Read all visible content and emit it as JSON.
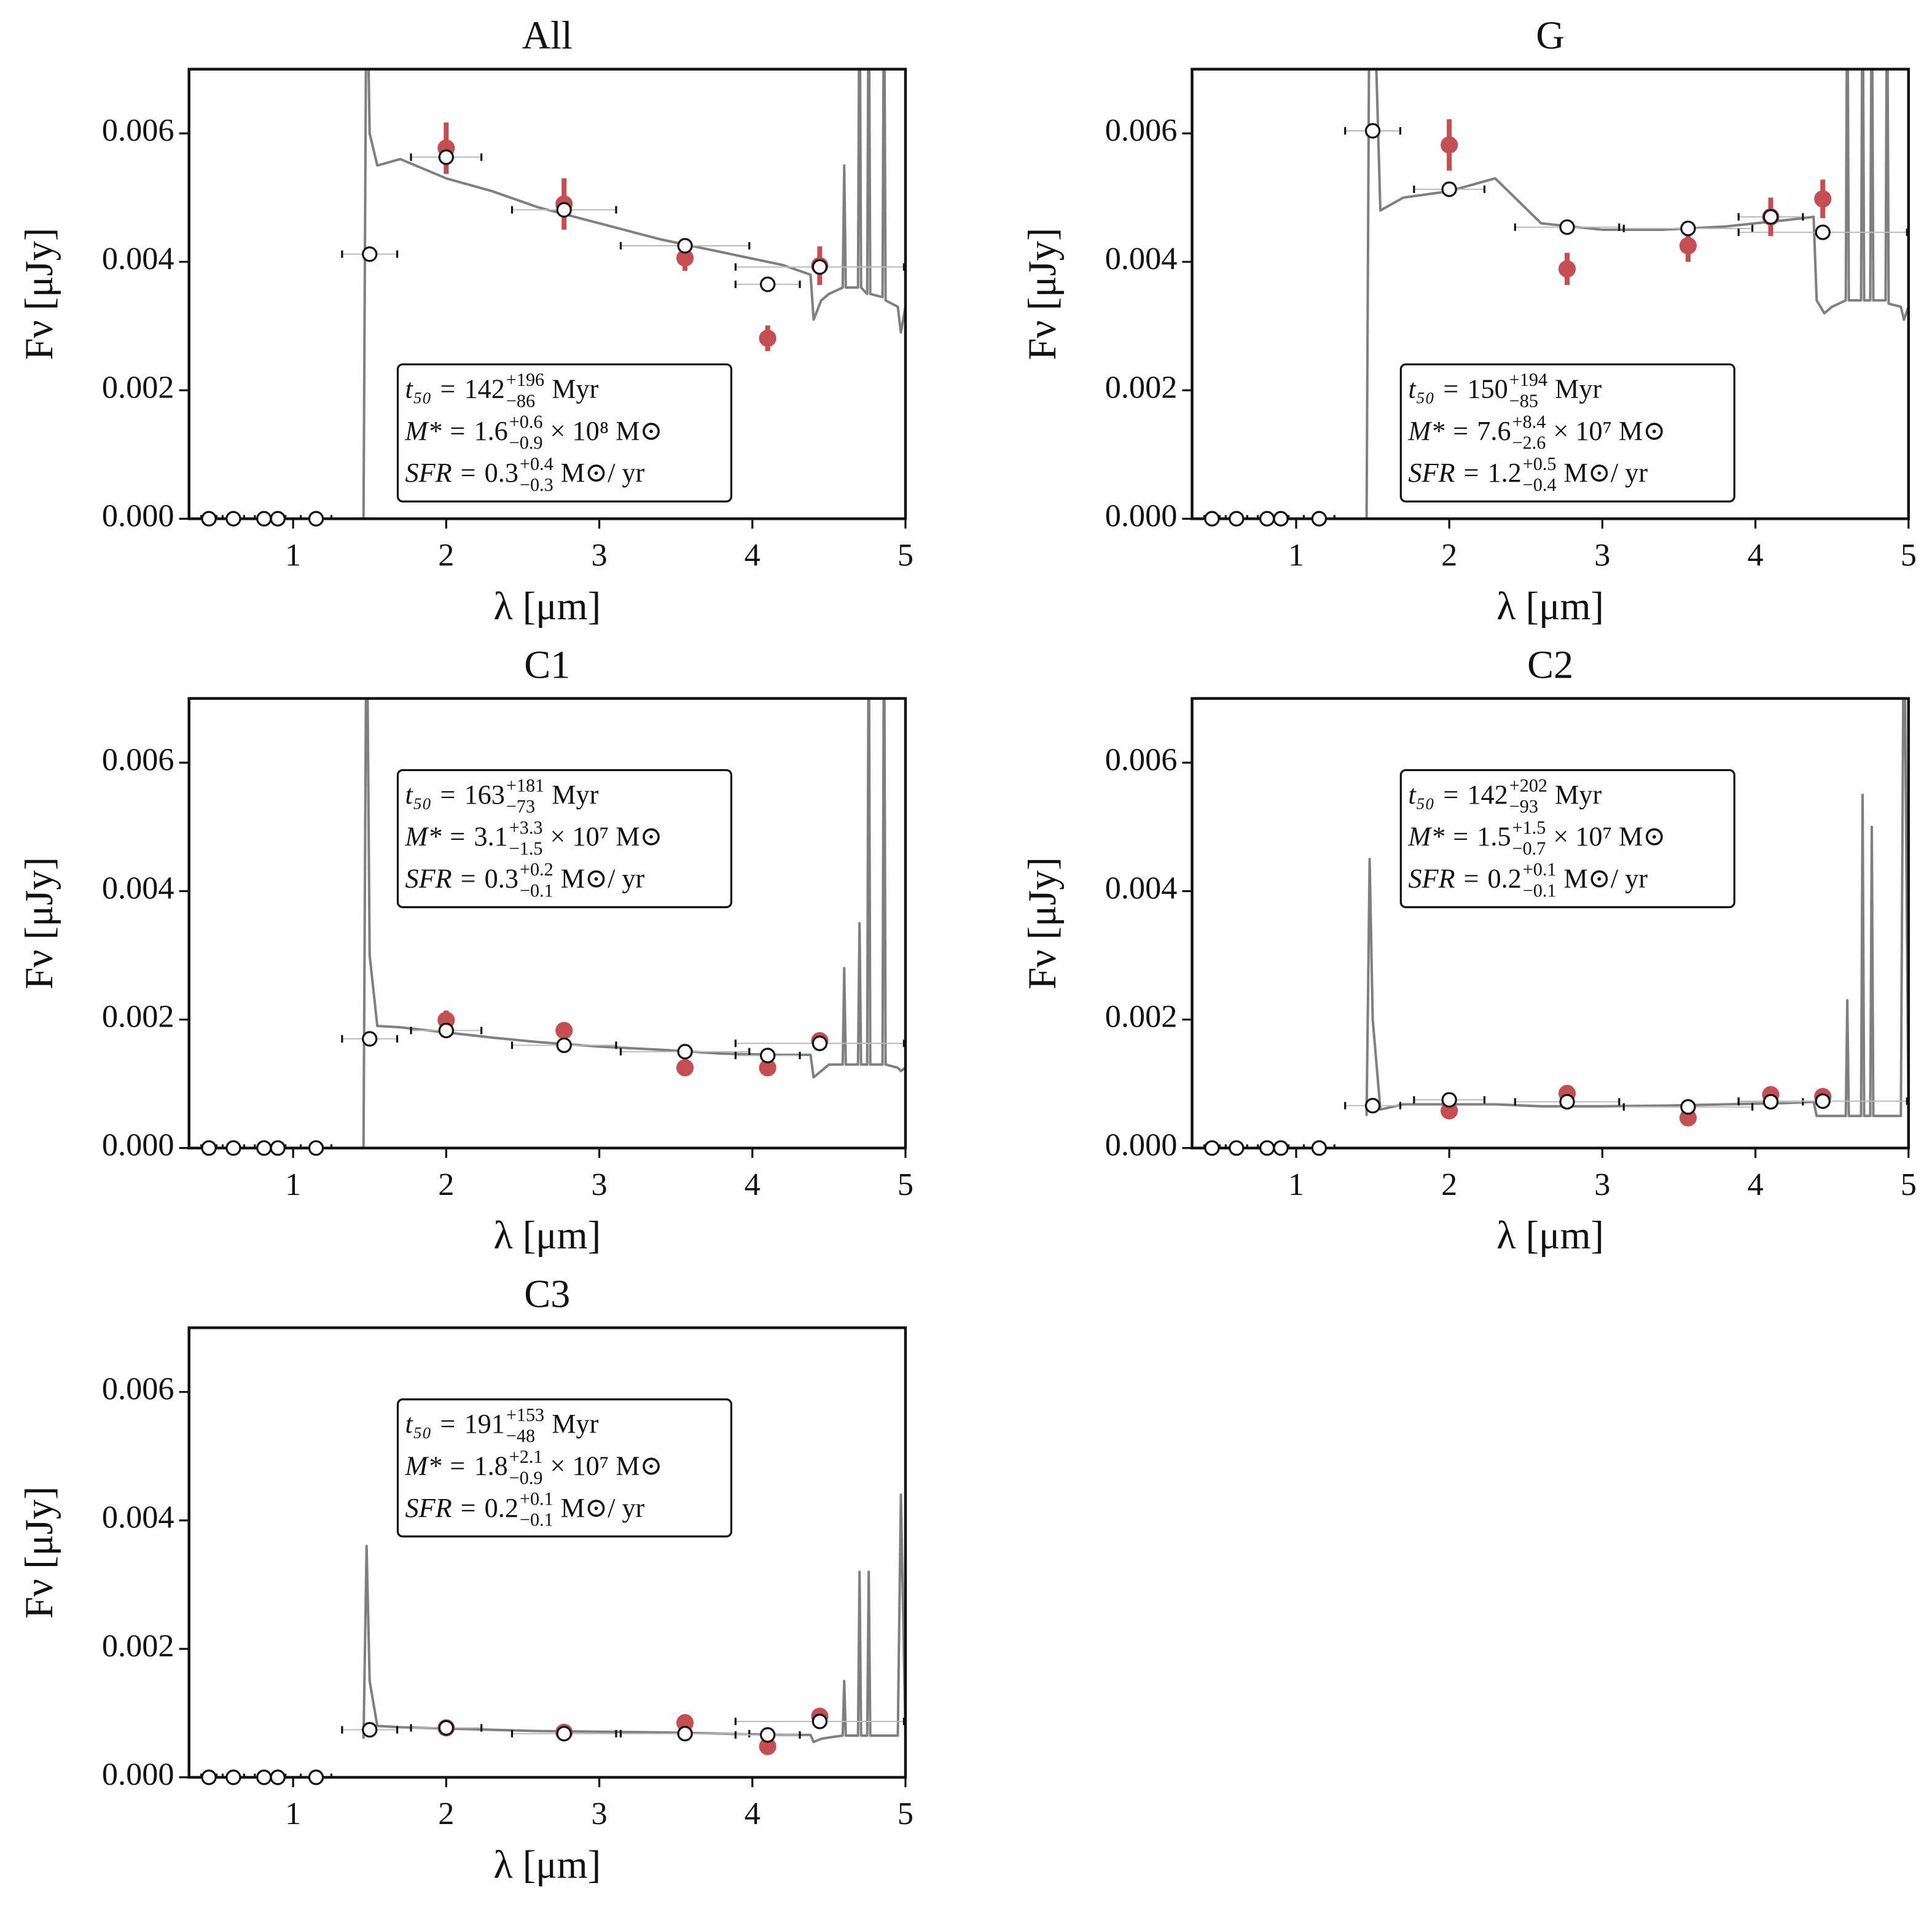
{
  "chart_data": [
    {
      "type": "sed",
      "title": "All",
      "xlabel": "λ [μm]",
      "ylabel": "Fν [μJy]",
      "xlim": [
        0.32,
        5
      ],
      "ylim": [
        0,
        0.007
      ],
      "xticks": [
        1,
        2,
        3,
        4,
        5
      ],
      "yticks": [
        {
          "value": 0,
          "label": "0.000"
        },
        {
          "value": 0.002,
          "label": "0.002"
        },
        {
          "value": 0.004,
          "label": "0.004"
        },
        {
          "value": 0.006,
          "label": "0.006"
        }
      ],
      "spectrum": {
        "color": "#7f7f7f",
        "x": [
          1.46,
          1.48,
          1.5,
          1.55,
          1.7,
          2.0,
          2.3,
          2.6,
          3.0,
          3.4,
          3.8,
          4.2,
          4.38,
          4.4,
          4.45,
          4.5,
          4.59,
          4.6,
          4.61,
          4.69,
          4.7,
          4.71,
          4.75,
          4.76,
          4.77,
          4.85,
          4.86,
          4.87,
          4.95,
          4.97,
          5.0
        ],
        "values": [
          0,
          0.009,
          0.006,
          0.0055,
          0.0056,
          0.0053,
          0.0051,
          0.00485,
          0.0046,
          0.00435,
          0.00415,
          0.00395,
          0.0038,
          0.0031,
          0.0034,
          0.0035,
          0.0036,
          0.0055,
          0.0036,
          0.0036,
          0.009,
          0.0036,
          0.0035,
          0.009,
          0.0035,
          0.00345,
          0.009,
          0.0034,
          0.0033,
          0.0029,
          0.0033
        ]
      },
      "model": {
        "color": "#ffffff",
        "x": [
          0.45,
          0.61,
          0.81,
          0.9,
          1.15,
          1.5,
          2.0,
          2.77,
          3.56,
          4.1,
          4.44
        ],
        "values": [
          0,
          0,
          0,
          0,
          0,
          0.00412,
          0.00563,
          0.00481,
          0.00425,
          0.00365,
          0.00392
        ],
        "xerr": [
          0.05,
          0.07,
          0.06,
          0.05,
          0.1,
          0.18,
          0.23,
          0.34,
          0.42,
          0.21,
          0.55
        ]
      },
      "observed": {
        "color": "#c44e52",
        "x": [
          2.0,
          2.77,
          3.56,
          4.1,
          4.44
        ],
        "values": [
          0.00577,
          0.0049,
          0.00406,
          0.00281,
          0.00394
        ],
        "yerr": [
          0.0004,
          0.0004,
          0.0002,
          0.0002,
          0.0003
        ]
      },
      "annotation": {
        "loc": "lower",
        "lines": [
          {
            "lhs": "t₅₀ =",
            "value": "142",
            "plus": "+196",
            "minus": "−86",
            "unit": "Myr"
          },
          {
            "lhs": "M* =",
            "value": "1.6",
            "plus": "+0.6",
            "minus": "−0.9",
            "unit": "× 10⁸ M⊙"
          },
          {
            "lhs": "SFR =",
            "value": "0.3",
            "plus": "+0.4",
            "minus": "−0.3",
            "unit": "M⊙/ yr"
          }
        ]
      }
    },
    {
      "type": "sed",
      "title": "G",
      "xlabel": "λ [μm]",
      "ylabel": "Fν [μJy]",
      "xlim": [
        0.32,
        5
      ],
      "ylim": [
        0,
        0.007
      ],
      "xticks": [
        1,
        2,
        3,
        4,
        5
      ],
      "yticks": [
        {
          "value": 0,
          "label": "0.000"
        },
        {
          "value": 0.002,
          "label": "0.002"
        },
        {
          "value": 0.004,
          "label": "0.004"
        },
        {
          "value": 0.006,
          "label": "0.006"
        }
      ],
      "spectrum": {
        "color": "#7f7f7f",
        "x": [
          1.46,
          1.48,
          1.5,
          1.55,
          1.7,
          2.0,
          2.3,
          2.6,
          3.0,
          3.4,
          3.8,
          4.2,
          4.38,
          4.4,
          4.45,
          4.5,
          4.59,
          4.6,
          4.61,
          4.69,
          4.7,
          4.71,
          4.75,
          4.76,
          4.77,
          4.85,
          4.86,
          4.87,
          4.95,
          4.97,
          5.0
        ],
        "values": [
          0,
          0.009,
          0.009,
          0.0048,
          0.005,
          0.0051,
          0.0053,
          0.0046,
          0.0045,
          0.0045,
          0.00455,
          0.00465,
          0.0047,
          0.0034,
          0.0032,
          0.0033,
          0.0034,
          0.009,
          0.0034,
          0.0034,
          0.009,
          0.0034,
          0.0034,
          0.009,
          0.0034,
          0.0034,
          0.009,
          0.00335,
          0.0033,
          0.0031,
          0.0033
        ]
      },
      "model": {
        "color": "#ffffff",
        "x": [
          0.45,
          0.61,
          0.81,
          0.9,
          1.15,
          1.5,
          2.0,
          2.77,
          3.56,
          4.1,
          4.44
        ],
        "values": [
          0,
          0,
          0,
          0,
          0,
          0.00604,
          0.00513,
          0.00454,
          0.00452,
          0.0047,
          0.00446
        ],
        "xerr": [
          0.05,
          0.07,
          0.06,
          0.05,
          0.1,
          0.18,
          0.23,
          0.34,
          0.42,
          0.21,
          0.55
        ]
      },
      "observed": {
        "color": "#c44e52",
        "x": [
          2.0,
          2.77,
          3.56,
          4.1,
          4.44
        ],
        "values": [
          0.00582,
          0.00389,
          0.00425,
          0.0047,
          0.00498
        ],
        "yerr": [
          0.0004,
          0.00025,
          0.00025,
          0.0003,
          0.0003
        ]
      },
      "annotation": {
        "loc": "lower",
        "lines": [
          {
            "lhs": "t₅₀ =",
            "value": "150",
            "plus": "+194",
            "minus": "−85",
            "unit": "Myr"
          },
          {
            "lhs": "M* =",
            "value": "7.6",
            "plus": "+8.4",
            "minus": "−2.6",
            "unit": "× 10⁷ M⊙"
          },
          {
            "lhs": "SFR =",
            "value": "1.2",
            "plus": "+0.5",
            "minus": "−0.4",
            "unit": "M⊙/ yr"
          }
        ]
      }
    },
    {
      "type": "sed",
      "title": "C1",
      "xlabel": "λ [μm]",
      "ylabel": "Fν [μJy]",
      "xlim": [
        0.32,
        5
      ],
      "ylim": [
        0,
        0.007
      ],
      "xticks": [
        1,
        2,
        3,
        4,
        5
      ],
      "yticks": [
        {
          "value": 0,
          "label": "0.000"
        },
        {
          "value": 0.002,
          "label": "0.002"
        },
        {
          "value": 0.004,
          "label": "0.004"
        },
        {
          "value": 0.006,
          "label": "0.006"
        }
      ],
      "spectrum": {
        "color": "#7f7f7f",
        "x": [
          1.46,
          1.48,
          1.5,
          1.55,
          1.7,
          2.0,
          2.3,
          2.6,
          3.0,
          3.4,
          3.8,
          4.2,
          4.38,
          4.4,
          4.45,
          4.5,
          4.59,
          4.6,
          4.61,
          4.69,
          4.7,
          4.71,
          4.75,
          4.76,
          4.77,
          4.85,
          4.86,
          4.87,
          4.95,
          4.97,
          5.0
        ],
        "values": [
          0,
          0.009,
          0.003,
          0.0019,
          0.00188,
          0.0018,
          0.00172,
          0.00165,
          0.00158,
          0.00153,
          0.00147,
          0.00145,
          0.00145,
          0.0011,
          0.0012,
          0.0013,
          0.0013,
          0.0028,
          0.0013,
          0.0013,
          0.0035,
          0.0013,
          0.0013,
          0.009,
          0.0013,
          0.0013,
          0.009,
          0.0013,
          0.00125,
          0.0012,
          0.00125
        ]
      },
      "model": {
        "color": "#ffffff",
        "x": [
          0.45,
          0.61,
          0.81,
          0.9,
          1.15,
          1.5,
          2.0,
          2.77,
          3.56,
          4.1,
          4.44
        ],
        "values": [
          0,
          0,
          0,
          0,
          0,
          0.0017,
          0.00183,
          0.0016,
          0.0015,
          0.00144,
          0.00163
        ],
        "xerr": [
          0.05,
          0.07,
          0.06,
          0.05,
          0.1,
          0.18,
          0.23,
          0.34,
          0.42,
          0.21,
          0.55
        ]
      },
      "observed": {
        "color": "#c44e52",
        "x": [
          2.0,
          2.77,
          3.56,
          4.1,
          4.44
        ],
        "values": [
          0.00199,
          0.00183,
          0.00125,
          0.00125,
          0.00167
        ],
        "yerr": [
          0.00015,
          0.0001,
          5e-05,
          5e-05,
          0.0001
        ]
      },
      "annotation": {
        "loc": "upper",
        "lines": [
          {
            "lhs": "t₅₀ =",
            "value": "163",
            "plus": "+181",
            "minus": "−73",
            "unit": "Myr"
          },
          {
            "lhs": "M* =",
            "value": "3.1",
            "plus": "+3.3",
            "minus": "−1.5",
            "unit": "× 10⁷ M⊙"
          },
          {
            "lhs": "SFR =",
            "value": "0.3",
            "plus": "+0.2",
            "minus": "−0.1",
            "unit": "M⊙/ yr"
          }
        ]
      }
    },
    {
      "type": "sed",
      "title": "C2",
      "xlabel": "λ [μm]",
      "ylabel": "Fν [μJy]",
      "xlim": [
        0.32,
        5
      ],
      "ylim": [
        0,
        0.007
      ],
      "xticks": [
        1,
        2,
        3,
        4,
        5
      ],
      "yticks": [
        {
          "value": 0,
          "label": "0.000"
        },
        {
          "value": 0.002,
          "label": "0.002"
        },
        {
          "value": 0.004,
          "label": "0.004"
        },
        {
          "value": 0.006,
          "label": "0.006"
        }
      ],
      "spectrum": {
        "color": "#7f7f7f",
        "x": [
          1.46,
          1.48,
          1.5,
          1.55,
          1.7,
          2.0,
          2.3,
          2.6,
          3.0,
          3.4,
          3.8,
          4.2,
          4.38,
          4.4,
          4.45,
          4.5,
          4.59,
          4.6,
          4.61,
          4.69,
          4.7,
          4.71,
          4.75,
          4.76,
          4.77,
          4.85,
          4.86,
          4.87,
          4.95,
          4.97,
          5.0
        ],
        "values": [
          0.0005,
          0.0045,
          0.002,
          0.0006,
          0.00068,
          0.00068,
          0.00068,
          0.00065,
          0.00065,
          0.00066,
          0.00068,
          0.0007,
          0.00072,
          0.0005,
          0.0005,
          0.0005,
          0.0005,
          0.0023,
          0.0005,
          0.0005,
          0.0055,
          0.0005,
          0.0005,
          0.005,
          0.0005,
          0.0005,
          0.0005,
          0.0005,
          0.0005,
          0.009,
          0.0005
        ]
      },
      "model": {
        "color": "#ffffff",
        "x": [
          0.45,
          0.61,
          0.81,
          0.9,
          1.15,
          1.5,
          2.0,
          2.77,
          3.56,
          4.1,
          4.44
        ],
        "values": [
          0,
          0,
          0,
          0,
          0,
          0.00066,
          0.00075,
          0.00072,
          0.00064,
          0.00072,
          0.00073
        ],
        "xerr": [
          0.05,
          0.07,
          0.06,
          0.05,
          0.1,
          0.18,
          0.23,
          0.34,
          0.42,
          0.21,
          0.55
        ]
      },
      "observed": {
        "color": "#c44e52",
        "x": [
          2.0,
          2.77,
          3.56,
          4.1,
          4.44
        ],
        "values": [
          0.00058,
          0.00085,
          0.00047,
          0.00083,
          0.0008
        ],
        "yerr": [
          3e-05,
          3e-05,
          3e-05,
          3e-05,
          3e-05
        ]
      },
      "annotation": {
        "loc": "upper",
        "lines": [
          {
            "lhs": "t₅₀ =",
            "value": "142",
            "plus": "+202",
            "minus": "−93",
            "unit": "Myr"
          },
          {
            "lhs": "M* =",
            "value": "1.5",
            "plus": "+1.5",
            "minus": "−0.7",
            "unit": "× 10⁷ M⊙"
          },
          {
            "lhs": "SFR =",
            "value": "0.2",
            "plus": "+0.1",
            "minus": "−0.1",
            "unit": "M⊙/ yr"
          }
        ]
      }
    },
    {
      "type": "sed",
      "title": "C3",
      "xlabel": "λ [μm]",
      "ylabel": "Fν [μJy]",
      "xlim": [
        0.32,
        5
      ],
      "ylim": [
        0,
        0.007
      ],
      "xticks": [
        1,
        2,
        3,
        4,
        5
      ],
      "yticks": [
        {
          "value": 0,
          "label": "0.000"
        },
        {
          "value": 0.002,
          "label": "0.002"
        },
        {
          "value": 0.004,
          "label": "0.004"
        },
        {
          "value": 0.006,
          "label": "0.006"
        }
      ],
      "spectrum": {
        "color": "#7f7f7f",
        "x": [
          1.46,
          1.48,
          1.5,
          1.55,
          1.7,
          2.0,
          2.3,
          2.6,
          3.0,
          3.4,
          3.8,
          4.2,
          4.38,
          4.4,
          4.45,
          4.5,
          4.59,
          4.6,
          4.61,
          4.69,
          4.7,
          4.71,
          4.75,
          4.76,
          4.77,
          4.85,
          4.86,
          4.87,
          4.95,
          4.97,
          5.0
        ],
        "values": [
          0.0006,
          0.0036,
          0.0015,
          0.0008,
          0.00078,
          0.00076,
          0.00074,
          0.00072,
          0.00071,
          0.0007,
          0.00068,
          0.00066,
          0.00066,
          0.00055,
          0.0006,
          0.00062,
          0.00065,
          0.0015,
          0.00065,
          0.00065,
          0.0032,
          0.00065,
          0.00065,
          0.0032,
          0.00065,
          0.00065,
          0.00065,
          0.00065,
          0.00065,
          0.0044,
          0.00065
        ]
      },
      "model": {
        "color": "#ffffff",
        "x": [
          0.45,
          0.61,
          0.81,
          0.9,
          1.15,
          1.5,
          2.0,
          2.77,
          3.56,
          4.1,
          4.44
        ],
        "values": [
          0,
          0,
          0,
          0,
          0,
          0.00074,
          0.00077,
          0.00068,
          0.00068,
          0.00066,
          0.00087
        ],
        "xerr": [
          0.05,
          0.07,
          0.06,
          0.05,
          0.1,
          0.18,
          0.23,
          0.34,
          0.42,
          0.21,
          0.55
        ]
      },
      "observed": {
        "color": "#c44e52",
        "x": [
          2.0,
          2.77,
          3.56,
          4.1,
          4.44
        ],
        "values": [
          0.00077,
          0.0007,
          0.00085,
          0.00048,
          0.00095
        ],
        "yerr": [
          3e-05,
          3e-05,
          3e-05,
          3e-05,
          3e-05
        ]
      },
      "annotation": {
        "loc": "upper",
        "lines": [
          {
            "lhs": "t₅₀ =",
            "value": "191",
            "plus": "+153",
            "minus": "−48",
            "unit": "Myr"
          },
          {
            "lhs": "M* =",
            "value": "1.8",
            "plus": "+2.1",
            "minus": "−0.9",
            "unit": "× 10⁷ M⊙"
          },
          {
            "lhs": "SFR =",
            "value": "0.2",
            "plus": "+0.1",
            "minus": "−0.1",
            "unit": "M⊙/ yr"
          }
        ]
      }
    }
  ]
}
